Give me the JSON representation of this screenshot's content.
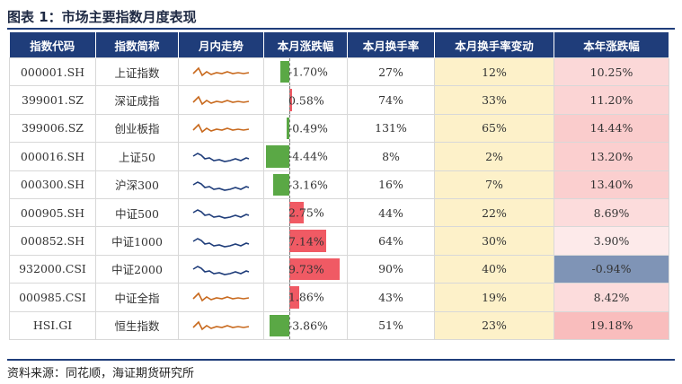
{
  "title": "图表 1：市场主要指数月度表现",
  "source": "资料来源：同花顺，海证期货研究所",
  "headers": [
    "指数代码",
    "指数简称",
    "月内走势",
    "本月涨跌幅",
    "本月换手率",
    "本月换手率变动",
    "本年涨跌幅"
  ],
  "colors": {
    "header_bg": "#1f3d7a",
    "pos_bar": "#f05a64",
    "neg_bar": "#5aa845",
    "spark_up": "#c8691d",
    "spark_down": "#1f3d7a",
    "turn_change_bg": "#fdf1c9",
    "ytd_neg_bg": "#7f94b6"
  },
  "rows": [
    {
      "code": "000001.SH",
      "name": "上证指数",
      "chg": "-1.70%",
      "chg_val": -1.7,
      "turnover": "27%",
      "turn_chg": "12%",
      "ytd": "10.25%",
      "ytd_val": 10.25,
      "spark": "up"
    },
    {
      "code": "399001.SZ",
      "name": "深证成指",
      "chg": "0.58%",
      "chg_val": 0.58,
      "turnover": "74%",
      "turn_chg": "33%",
      "ytd": "11.20%",
      "ytd_val": 11.2,
      "spark": "up"
    },
    {
      "code": "399006.SZ",
      "name": "创业板指",
      "chg": "-0.49%",
      "chg_val": -0.49,
      "turnover": "131%",
      "turn_chg": "65%",
      "ytd": "14.44%",
      "ytd_val": 14.44,
      "spark": "up"
    },
    {
      "code": "000016.SH",
      "name": "上证50",
      "chg": "-4.44%",
      "chg_val": -4.44,
      "turnover": "8%",
      "turn_chg": "2%",
      "ytd": "13.20%",
      "ytd_val": 13.2,
      "spark": "down"
    },
    {
      "code": "000300.SH",
      "name": "沪深300",
      "chg": "-3.16%",
      "chg_val": -3.16,
      "turnover": "16%",
      "turn_chg": "7%",
      "ytd": "13.40%",
      "ytd_val": 13.4,
      "spark": "down"
    },
    {
      "code": "000905.SH",
      "name": "中证500",
      "chg": "2.75%",
      "chg_val": 2.75,
      "turnover": "44%",
      "turn_chg": "22%",
      "ytd": "8.69%",
      "ytd_val": 8.69,
      "spark": "down"
    },
    {
      "code": "000852.SH",
      "name": "中证1000",
      "chg": "7.14%",
      "chg_val": 7.14,
      "turnover": "64%",
      "turn_chg": "30%",
      "ytd": "3.90%",
      "ytd_val": 3.9,
      "spark": "down"
    },
    {
      "code": "932000.CSI",
      "name": "中证2000",
      "chg": "9.73%",
      "chg_val": 9.73,
      "turnover": "90%",
      "turn_chg": "40%",
      "ytd": "-0.94%",
      "ytd_val": -0.94,
      "spark": "down"
    },
    {
      "code": "000985.CSI",
      "name": "中证全指",
      "chg": "1.86%",
      "chg_val": 1.86,
      "turnover": "43%",
      "turn_chg": "19%",
      "ytd": "8.42%",
      "ytd_val": 8.42,
      "spark": "up"
    },
    {
      "code": "HSI.GI",
      "name": "恒生指数",
      "chg": "-3.86%",
      "chg_val": -3.86,
      "turnover": "51%",
      "turn_chg": "23%",
      "ytd": "19.18%",
      "ytd_val": 19.18,
      "spark": "up"
    }
  ]
}
